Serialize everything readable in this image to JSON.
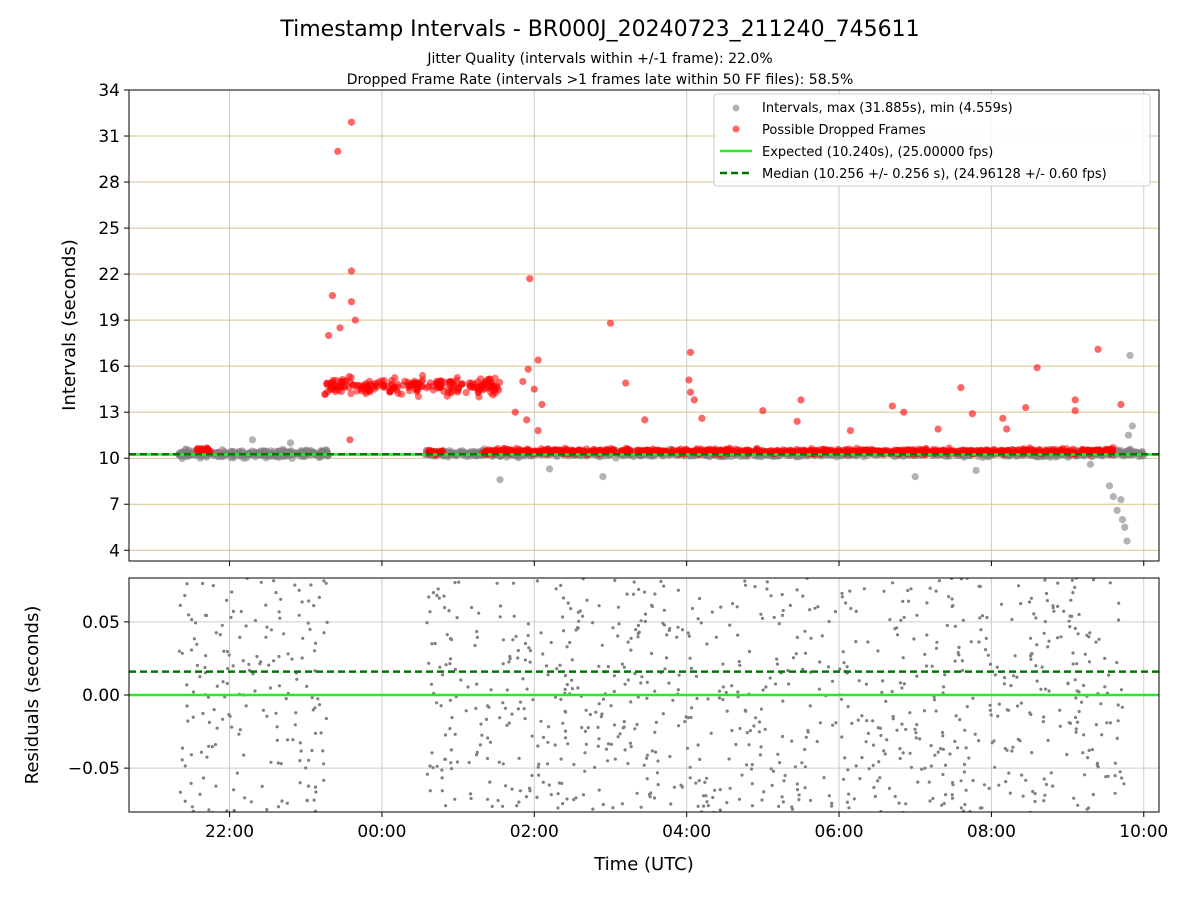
{
  "chart_data": {
    "title": "Timestamp Intervals - BR000J_20240723_211240_745611",
    "subtitle_lines": [
      "Jitter Quality (intervals within +/-1 frame): 22.0%",
      "Dropped Frame Rate (intervals >1 frames late within 50 FF files): 58.5%"
    ],
    "xlabel": "Time (UTC)",
    "x_tick_labels": [
      "22:00",
      "00:00",
      "02:00",
      "04:00",
      "06:00",
      "08:00",
      "10:00"
    ],
    "x_ticks_hours": [
      22,
      24,
      26,
      28,
      30,
      32,
      34
    ],
    "xlim_hours": [
      20.68,
      34.2
    ],
    "colors": {
      "intervals": "#808080",
      "dropped": "#ff0000",
      "expected": "#22ee22",
      "median": "#007700",
      "hgrid_top": "#d6c48a",
      "vgrid": "#cccccc"
    },
    "panels": [
      {
        "type": "scatter",
        "ylabel": "Intervals (seconds)",
        "ylim": [
          3.3,
          34
        ],
        "yticks": [
          4,
          7,
          10,
          13,
          16,
          19,
          22,
          25,
          28,
          31,
          34
        ],
        "ytick_labels": [
          "4",
          "7",
          "10",
          "13",
          "16",
          "19",
          "22",
          "25",
          "28",
          "31",
          "34"
        ],
        "legend_position": "top-right",
        "legend": [
          "Intervals, max (31.885s), min (4.559s)",
          "Possible Dropped Frames",
          "Expected (10.240s), (25.00000 fps)",
          "Median (10.256 +/- 0.256 s), (24.96128 +/- 0.60 fps)"
        ],
        "expected_line": 10.24,
        "median_line": 10.256,
        "interval_bands": [
          {
            "t_start": 21.33,
            "t_end": 23.3,
            "median": 10.3,
            "spread": 0.6
          },
          {
            "t_start": 24.57,
            "t_end": 34.0,
            "median": 10.3,
            "spread": 0.5
          }
        ],
        "interval_outliers": [
          {
            "t": 25.55,
            "y": 8.6
          },
          {
            "t": 26.2,
            "y": 9.3
          },
          {
            "t": 26.9,
            "y": 8.8
          },
          {
            "t": 31.0,
            "y": 8.8
          },
          {
            "t": 31.8,
            "y": 9.2
          },
          {
            "t": 33.3,
            "y": 9.6
          },
          {
            "t": 33.55,
            "y": 8.2
          },
          {
            "t": 33.6,
            "y": 7.5
          },
          {
            "t": 33.65,
            "y": 6.6
          },
          {
            "t": 33.7,
            "y": 7.3
          },
          {
            "t": 33.72,
            "y": 6.0
          },
          {
            "t": 33.75,
            "y": 5.5
          },
          {
            "t": 33.78,
            "y": 4.6
          },
          {
            "t": 33.8,
            "y": 11.5
          },
          {
            "t": 33.82,
            "y": 16.7
          },
          {
            "t": 33.85,
            "y": 12.1
          },
          {
            "t": 22.3,
            "y": 11.2
          },
          {
            "t": 22.8,
            "y": 11.0
          }
        ],
        "dropped_bands": [
          {
            "t_start": 21.55,
            "t_end": 21.75,
            "median": 10.5,
            "spread": 0.5
          },
          {
            "t_start": 23.25,
            "t_end": 25.55,
            "median": 14.7,
            "spread": 1.2
          },
          {
            "t_start": 24.6,
            "t_end": 24.8,
            "median": 10.4,
            "spread": 0.3
          },
          {
            "t_start": 25.3,
            "t_end": 33.6,
            "median": 10.45,
            "spread": 0.35
          }
        ],
        "dropped_outliers": [
          {
            "t": 23.6,
            "y": 31.9
          },
          {
            "t": 23.42,
            "y": 30.0
          },
          {
            "t": 23.6,
            "y": 22.2
          },
          {
            "t": 23.35,
            "y": 20.6
          },
          {
            "t": 23.6,
            "y": 20.2
          },
          {
            "t": 23.45,
            "y": 18.5
          },
          {
            "t": 23.65,
            "y": 19.0
          },
          {
            "t": 23.3,
            "y": 18.0
          },
          {
            "t": 23.58,
            "y": 11.2
          },
          {
            "t": 25.94,
            "y": 21.7
          },
          {
            "t": 27.0,
            "y": 18.8
          },
          {
            "t": 26.05,
            "y": 16.4
          },
          {
            "t": 25.92,
            "y": 15.8
          },
          {
            "t": 25.85,
            "y": 15.0
          },
          {
            "t": 26.0,
            "y": 14.5
          },
          {
            "t": 25.75,
            "y": 13.0
          },
          {
            "t": 25.9,
            "y": 12.5
          },
          {
            "t": 26.1,
            "y": 13.5
          },
          {
            "t": 26.05,
            "y": 11.8
          },
          {
            "t": 27.2,
            "y": 14.9
          },
          {
            "t": 28.05,
            "y": 16.9
          },
          {
            "t": 28.03,
            "y": 15.1
          },
          {
            "t": 28.05,
            "y": 14.3
          },
          {
            "t": 28.1,
            "y": 13.8
          },
          {
            "t": 27.45,
            "y": 12.5
          },
          {
            "t": 28.2,
            "y": 12.6
          },
          {
            "t": 29.0,
            "y": 13.1
          },
          {
            "t": 29.5,
            "y": 13.8
          },
          {
            "t": 29.45,
            "y": 12.4
          },
          {
            "t": 30.15,
            "y": 11.8
          },
          {
            "t": 30.7,
            "y": 13.4
          },
          {
            "t": 30.85,
            "y": 13.0
          },
          {
            "t": 31.3,
            "y": 11.9
          },
          {
            "t": 31.6,
            "y": 14.6
          },
          {
            "t": 31.75,
            "y": 12.9
          },
          {
            "t": 32.15,
            "y": 12.6
          },
          {
            "t": 32.2,
            "y": 11.9
          },
          {
            "t": 32.45,
            "y": 13.3
          },
          {
            "t": 32.6,
            "y": 15.9
          },
          {
            "t": 33.1,
            "y": 13.8
          },
          {
            "t": 33.1,
            "y": 13.1
          },
          {
            "t": 33.4,
            "y": 17.1
          },
          {
            "t": 33.7,
            "y": 13.5
          }
        ]
      },
      {
        "type": "scatter",
        "ylabel": "Residuals (seconds)",
        "ylim": [
          -0.08,
          0.08
        ],
        "yticks": [
          -0.05,
          0.0,
          0.05
        ],
        "ytick_labels": [
          "−0.05",
          "0.00",
          "0.05"
        ],
        "expected_line": 0.0,
        "median_line": 0.016,
        "residual_segments": [
          {
            "t_start": 21.33,
            "t_end": 23.3,
            "spread": 0.08
          },
          {
            "t_start": 24.57,
            "t_end": 33.75,
            "spread": 0.08
          }
        ]
      }
    ]
  }
}
